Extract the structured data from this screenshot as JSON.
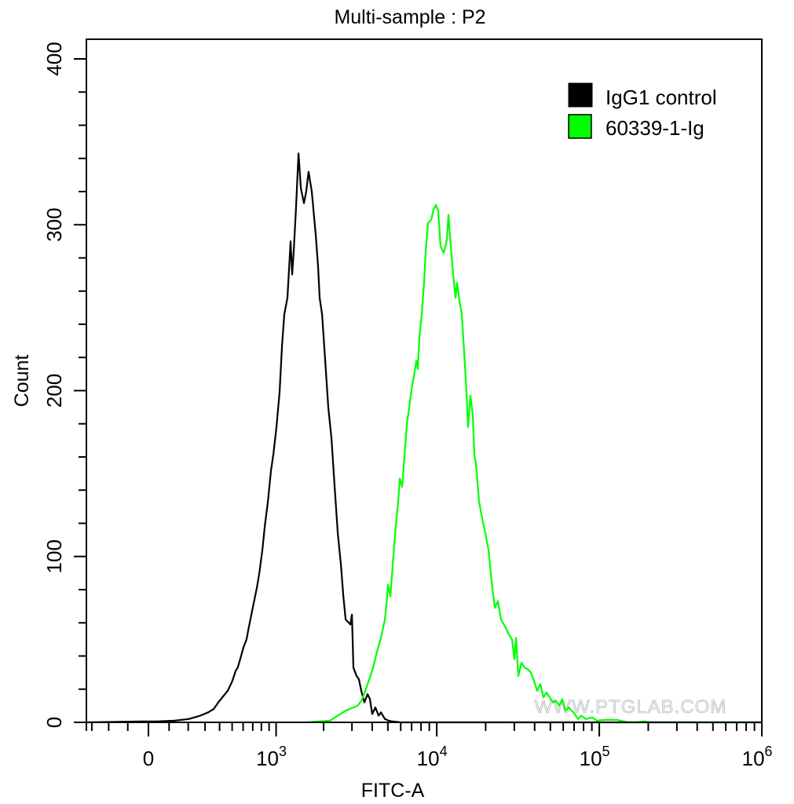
{
  "chart_data": {
    "type": "line",
    "title": "Multi-sample : P2",
    "xlabel": "FITC-A",
    "ylabel": "Count",
    "x_scale": "biexponential",
    "xlim": [
      -346,
      1000000
    ],
    "ylim": [
      0,
      400
    ],
    "grid": false,
    "legend_position": "top-right",
    "x_tick_labels": [
      {
        "value": 0,
        "base": "0",
        "exp": ""
      },
      {
        "value": 1000,
        "base": "10",
        "exp": "3"
      },
      {
        "value": 10000,
        "base": "10",
        "exp": "4"
      },
      {
        "value": 100000,
        "base": "10",
        "exp": "5"
      },
      {
        "value": 1000000,
        "base": "10",
        "exp": "6"
      }
    ],
    "y_tick_labels": [
      {
        "value": 0,
        "label": "0"
      },
      {
        "value": 100,
        "label": "100"
      },
      {
        "value": 200,
        "label": "200"
      },
      {
        "value": 300,
        "label": "300"
      },
      {
        "value": 400,
        "label": "400"
      }
    ],
    "watermark": "WWW.PTGLAB.COM",
    "series": [
      {
        "name": "IgG1 control",
        "color": "#000000",
        "points": [
          [
            -346,
            0
          ],
          [
            -34,
            0.5
          ],
          [
            41,
            0.5
          ],
          [
            126,
            1
          ],
          [
            202,
            2
          ],
          [
            270,
            4
          ],
          [
            320,
            6
          ],
          [
            357,
            8
          ],
          [
            391,
            12
          ],
          [
            420,
            15
          ],
          [
            463,
            19
          ],
          [
            502,
            25
          ],
          [
            530,
            31
          ],
          [
            549,
            33
          ],
          [
            572,
            38
          ],
          [
            603,
            45
          ],
          [
            634,
            50
          ],
          [
            657,
            57
          ],
          [
            700,
            69
          ],
          [
            746,
            81
          ],
          [
            775,
            90
          ],
          [
            813,
            104
          ],
          [
            843,
            118
          ],
          [
            884,
            133
          ],
          [
            927,
            152
          ],
          [
            961,
            162
          ],
          [
            1005,
            178
          ],
          [
            1054,
            199
          ],
          [
            1092,
            227
          ],
          [
            1130,
            246
          ],
          [
            1183,
            256
          ],
          [
            1210,
            272
          ],
          [
            1239,
            290
          ],
          [
            1268,
            270
          ],
          [
            1298,
            284
          ],
          [
            1342,
            310
          ],
          [
            1391,
            343
          ],
          [
            1440,
            322
          ],
          [
            1506,
            313
          ],
          [
            1557,
            320
          ],
          [
            1611,
            332
          ],
          [
            1687,
            320
          ],
          [
            1786,
            294
          ],
          [
            1848,
            275
          ],
          [
            1890,
            256
          ],
          [
            1956,
            246
          ],
          [
            2046,
            218
          ],
          [
            2140,
            190
          ],
          [
            2240,
            171
          ],
          [
            2343,
            142
          ],
          [
            2452,
            114
          ],
          [
            2564,
            95
          ],
          [
            2653,
            76
          ],
          [
            2743,
            62
          ],
          [
            2933,
            59
          ],
          [
            2997,
            65
          ],
          [
            3062,
            33
          ],
          [
            3204,
            28
          ],
          [
            3313,
            26
          ],
          [
            3426,
            19
          ],
          [
            3581,
            12
          ],
          [
            3746,
            17
          ],
          [
            3874,
            14
          ],
          [
            4007,
            5
          ],
          [
            4190,
            9
          ],
          [
            4383,
            4
          ],
          [
            4532,
            6
          ],
          [
            4791,
            2
          ],
          [
            5065,
            1
          ],
          [
            5357,
            0.5
          ],
          [
            5987,
            0
          ],
          [
            1000000,
            0
          ]
        ]
      },
      {
        "name": "60339-1-Ig",
        "color": "#00ff00",
        "points": [
          [
            1557,
            0
          ],
          [
            2190,
            1
          ],
          [
            2452,
            4
          ],
          [
            2743,
            7
          ],
          [
            3073,
            9
          ],
          [
            3248,
            10
          ],
          [
            3434,
            13
          ],
          [
            3630,
            19
          ],
          [
            3838,
            26
          ],
          [
            4057,
            33
          ],
          [
            4290,
            43
          ],
          [
            4536,
            51
          ],
          [
            4794,
            62
          ],
          [
            4902,
            71
          ],
          [
            5012,
            83
          ],
          [
            5182,
            76
          ],
          [
            5358,
            95
          ],
          [
            5540,
            114
          ],
          [
            5790,
            133
          ],
          [
            5921,
            147
          ],
          [
            6123,
            142
          ],
          [
            6331,
            161
          ],
          [
            6546,
            180
          ],
          [
            6768,
            190
          ],
          [
            6998,
            201
          ],
          [
            7236,
            209
          ],
          [
            7478,
            218
          ],
          [
            7647,
            213
          ],
          [
            7820,
            232
          ],
          [
            8085,
            246
          ],
          [
            8360,
            265
          ],
          [
            8550,
            284
          ],
          [
            8840,
            301
          ],
          [
            9243,
            303
          ],
          [
            9555,
            309
          ],
          [
            9879,
            312
          ],
          [
            10214,
            308
          ],
          [
            10561,
            287
          ],
          [
            11042,
            283
          ],
          [
            11545,
            291
          ],
          [
            11803,
            306
          ],
          [
            12204,
            287
          ],
          [
            12618,
            270
          ],
          [
            13046,
            256
          ],
          [
            13341,
            265
          ],
          [
            13790,
            254
          ],
          [
            14258,
            246
          ],
          [
            14742,
            223
          ],
          [
            15242,
            199
          ],
          [
            15586,
            178
          ],
          [
            16116,
            197
          ],
          [
            16662,
            185
          ],
          [
            17035,
            161
          ],
          [
            17418,
            156
          ],
          [
            18211,
            133
          ],
          [
            19040,
            123
          ],
          [
            19910,
            114
          ],
          [
            20815,
            104
          ],
          [
            21763,
            85
          ],
          [
            22751,
            69
          ],
          [
            23785,
            73
          ],
          [
            24873,
            62
          ],
          [
            26589,
            57
          ],
          [
            27797,
            53
          ],
          [
            29063,
            50
          ],
          [
            30046,
            38
          ],
          [
            30725,
            51
          ],
          [
            31768,
            28
          ],
          [
            33209,
            36
          ],
          [
            34720,
            33
          ],
          [
            36300,
            32
          ],
          [
            37960,
            30
          ],
          [
            39680,
            25
          ],
          [
            41490,
            19
          ],
          [
            43370,
            23
          ],
          [
            45360,
            15
          ],
          [
            47420,
            18
          ],
          [
            49580,
            15
          ],
          [
            51820,
            12
          ],
          [
            54180,
            13
          ],
          [
            56650,
            10
          ],
          [
            59220,
            14
          ],
          [
            61920,
            7
          ],
          [
            64730,
            9
          ],
          [
            69210,
            6
          ],
          [
            73980,
            2
          ],
          [
            77340,
            4
          ],
          [
            82680,
            2
          ],
          [
            90380,
            3
          ],
          [
            96630,
            1
          ],
          [
            108000,
            1.5
          ],
          [
            129000,
            1.5
          ],
          [
            134900,
            1
          ],
          [
            150800,
            0
          ],
          [
            168500,
            0
          ],
          [
            188300,
            0.5
          ],
          [
            210500,
            0
          ],
          [
            1000000,
            0
          ]
        ]
      }
    ]
  }
}
